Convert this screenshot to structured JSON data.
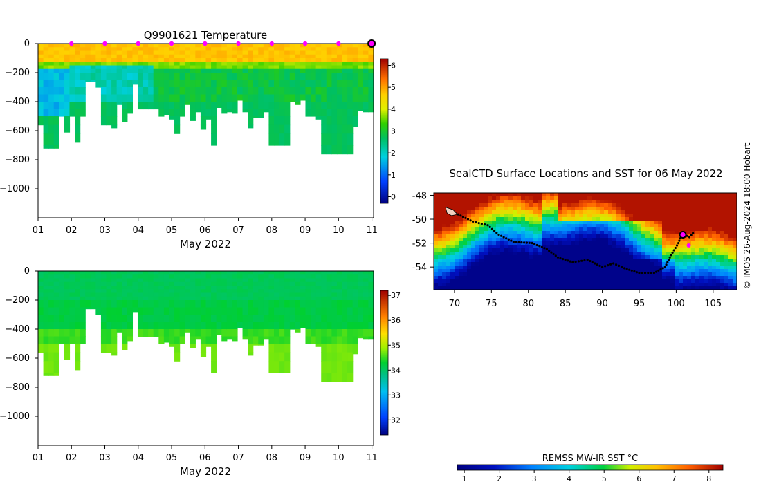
{
  "chart_data": [
    {
      "id": "temperature-section",
      "type": "heatmap",
      "title": "Q9901621  Temperature",
      "xlabel": "May 2022",
      "x_ticks": [
        "01",
        "02",
        "03",
        "04",
        "05",
        "06",
        "07",
        "08",
        "09",
        "10",
        "11"
      ],
      "xlim": [
        1,
        11.05
      ],
      "ylim": [
        0,
        -1200
      ],
      "y_ticks": [
        0,
        -200,
        -400,
        -600,
        -800,
        -1000
      ],
      "y_tick_labels": [
        "0",
        "−200",
        "−400",
        "−600",
        "−800",
        "−1000"
      ],
      "colorbar": {
        "min": -0.3,
        "max": 6.3,
        "ticks": [
          0,
          1,
          2,
          3,
          4,
          5,
          6
        ],
        "tick_labels": [
          "0",
          "1",
          "2",
          "3",
          "4",
          "5",
          "6"
        ]
      },
      "profile_depths_m": [
        560,
        720,
        720,
        720,
        500,
        610,
        500,
        680,
        500,
        260,
        260,
        300,
        560,
        560,
        580,
        420,
        540,
        480,
        280,
        450,
        450,
        450,
        450,
        500,
        490,
        520,
        620,
        500,
        420,
        530,
        470,
        590,
        520,
        700,
        440,
        480,
        470,
        480,
        390,
        470,
        580,
        510,
        510,
        470,
        700,
        700,
        700,
        700,
        400,
        420,
        390,
        500,
        500,
        520,
        760,
        760,
        760,
        760,
        760,
        760,
        570,
        460,
        470,
        470
      ],
      "surface_markers_day": [
        2,
        3,
        4,
        5,
        6,
        7,
        8,
        9,
        10
      ],
      "current_position_marker_day": 11
    },
    {
      "id": "salinity-section",
      "type": "heatmap",
      "title": "",
      "xlabel": "May 2022",
      "x_ticks": [
        "01",
        "02",
        "03",
        "04",
        "05",
        "06",
        "07",
        "08",
        "09",
        "10",
        "11"
      ],
      "xlim": [
        1,
        11.05
      ],
      "ylim": [
        0,
        -1200
      ],
      "y_ticks": [
        0,
        -200,
        -400,
        -600,
        -800,
        -1000
      ],
      "y_tick_labels": [
        "0",
        "−200",
        "−400",
        "−600",
        "−800",
        "−1000"
      ],
      "colorbar": {
        "min": 31.4,
        "max": 37.2,
        "ticks": [
          32,
          33,
          34,
          35,
          36,
          37
        ],
        "tick_labels": [
          "32",
          "33",
          "34",
          "35",
          "36",
          "37"
        ]
      }
    },
    {
      "id": "sst-map",
      "type": "heatmap",
      "title": "SealCTD Surface Locations and SST for 06 May 2022",
      "x_ticks": [
        70,
        75,
        80,
        85,
        90,
        95,
        100,
        105
      ],
      "x_tick_labels": [
        "70",
        "75",
        "80",
        "85",
        "90",
        "95",
        "100",
        "105"
      ],
      "xlim": [
        67.2,
        108.2
      ],
      "y_ticks": [
        -48,
        -50,
        -52,
        -54
      ],
      "y_tick_labels": [
        "-48",
        "-50",
        "-52",
        "-54"
      ],
      "ylim": [
        -55.9,
        -47.8
      ],
      "colorbar_title": "REMSS MW-IR SST °C",
      "colorbar": {
        "min": 0.8,
        "max": 8.4,
        "ticks": [
          1,
          2,
          3,
          4,
          5,
          6,
          7,
          8
        ],
        "tick_labels": [
          "1",
          "2",
          "3",
          "4",
          "5",
          "6",
          "7",
          "8"
        ]
      },
      "track_lonlat": [
        [
          69.2,
          -49.3
        ],
        [
          70.5,
          -49.6
        ],
        [
          72.5,
          -50.2
        ],
        [
          74.5,
          -50.5
        ],
        [
          76.0,
          -51.3
        ],
        [
          78.0,
          -51.9
        ],
        [
          80.5,
          -52.0
        ],
        [
          82.5,
          -52.5
        ],
        [
          84.0,
          -53.2
        ],
        [
          86.0,
          -53.6
        ],
        [
          88.0,
          -53.4
        ],
        [
          90.0,
          -54.0
        ],
        [
          91.5,
          -53.7
        ],
        [
          93.0,
          -54.1
        ],
        [
          95.0,
          -54.5
        ],
        [
          97.0,
          -54.5
        ],
        [
          98.5,
          -54.0
        ],
        [
          99.3,
          -53.0
        ],
        [
          100.3,
          -52.0
        ],
        [
          100.8,
          -51.2
        ],
        [
          101.8,
          -51.5
        ],
        [
          102.5,
          -51.0
        ]
      ],
      "current_position": [
        100.9,
        -51.3
      ],
      "credit": "© IMOS 26-Aug-2024 18:00 Hobart"
    }
  ],
  "page": {
    "temp_title": "Q9901621  Temperature",
    "temp_xlabel": "May 2022",
    "sal_xlabel": "May 2022",
    "map_title": "SealCTD Surface Locations and SST for 06 May 2022",
    "map_cbar_title": "REMSS MW-IR SST °C",
    "credit": "© IMOS 26-Aug-2024 18:00 Hobart"
  }
}
